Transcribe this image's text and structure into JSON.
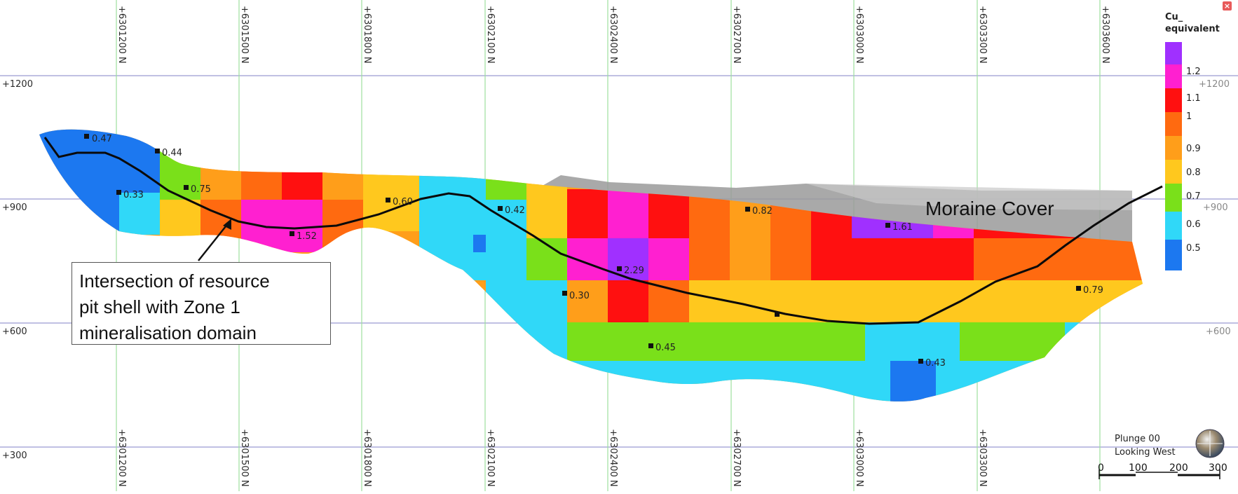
{
  "section": {
    "northing_labels": [
      "+6301200 N",
      "+6301500 N",
      "+6301800 N",
      "+6302100 N",
      "+6302400 N",
      "+6302700 N",
      "+6303000 N",
      "+6303300 N",
      "+6303600 N"
    ],
    "elevation_labels_left": [
      "+1200",
      "+900",
      "+600",
      "+300"
    ],
    "elevation_labels_right": [
      "+1200",
      "+900",
      "+600"
    ],
    "sample_labels": [
      "0.47",
      "0.44",
      "0.33",
      "0.75",
      "1.52",
      "0.60",
      "0.42",
      "0.82",
      "1.61",
      "2.29",
      "0.30",
      "0.79",
      "0.45",
      "0.43"
    ],
    "moraine_label": "Moraine Cover",
    "callout_lines": [
      "Intersection of resource",
      "pit shell with Zone 1",
      "mineralisation domain"
    ]
  },
  "legend": {
    "title_lines": [
      "Cu_",
      "equivalent"
    ],
    "labels": [
      "1.2",
      "1.1",
      "1",
      "0.9",
      "0.8",
      "0.7",
      "0.6",
      "0.5"
    ],
    "colors": [
      "#a030ff",
      "#ff20d0",
      "#ff1010",
      "#ff6a10",
      "#ff9e1a",
      "#ffc81e",
      "#7ae01a",
      "#30d8f8",
      "#1c78f0"
    ]
  },
  "view": {
    "plunge": "Plunge 00",
    "looking": "Looking West",
    "scale_labels": [
      "0",
      "100",
      "200",
      "300"
    ]
  },
  "icons": {
    "close": "close-icon",
    "compass": "compass-icon"
  }
}
